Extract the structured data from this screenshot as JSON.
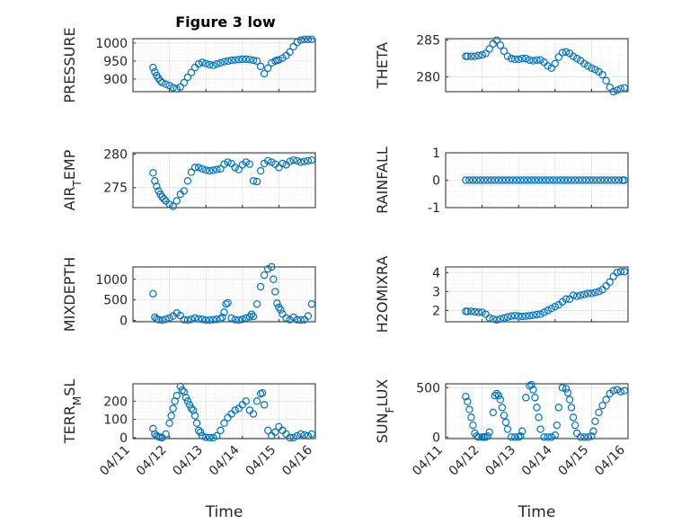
{
  "figure": {
    "title": "Figure 3 low",
    "xlabel": "Time"
  },
  "chart_data": [
    {
      "type": "scatter",
      "ylabel": "PRESSURE",
      "title": "Figure 3 low",
      "xlabel": "",
      "xlim": [
        "04/11",
        "04/16"
      ],
      "ylim": [
        865,
        1012
      ],
      "yticks": [
        "900",
        "950",
        "1000"
      ],
      "xticks": [],
      "x": [
        0.55,
        0.6,
        0.65,
        0.7,
        0.75,
        0.8,
        0.9,
        1.0,
        1.1,
        1.2,
        1.3,
        1.4,
        1.5,
        1.6,
        1.7,
        1.8,
        1.9,
        2.0,
        2.1,
        2.2,
        2.3,
        2.4,
        2.5,
        2.6,
        2.7,
        2.8,
        2.9,
        3.0,
        3.1,
        3.2,
        3.3,
        3.4,
        3.5,
        3.6,
        3.7,
        3.8,
        3.9,
        3.95,
        4.0,
        4.1,
        4.2,
        4.3,
        4.4,
        4.5,
        4.6,
        4.7,
        4.8,
        4.9
      ],
      "y": [
        932,
        920,
        910,
        902,
        895,
        890,
        886,
        882,
        876,
        873,
        878,
        890,
        905,
        918,
        932,
        942,
        946,
        943,
        940,
        938,
        942,
        945,
        948,
        950,
        952,
        953,
        954,
        955,
        955,
        954,
        952,
        950,
        935,
        915,
        930,
        945,
        950,
        952,
        953,
        958,
        965,
        975,
        990,
        1002,
        1008,
        1010,
        1010,
        1010
      ]
    },
    {
      "type": "scatter",
      "ylabel": "THETA",
      "xlim": [
        "04/11",
        "04/16"
      ],
      "ylim": [
        278,
        285.2
      ],
      "yticks": [
        "280",
        "285"
      ],
      "xticks": [],
      "x": [
        0.55,
        0.6,
        0.7,
        0.8,
        0.9,
        1.0,
        1.1,
        1.2,
        1.3,
        1.4,
        1.5,
        1.6,
        1.7,
        1.8,
        1.9,
        2.0,
        2.1,
        2.2,
        2.3,
        2.4,
        2.5,
        2.6,
        2.7,
        2.8,
        2.9,
        3.0,
        3.1,
        3.2,
        3.3,
        3.4,
        3.5,
        3.6,
        3.7,
        3.8,
        3.9,
        4.0,
        4.1,
        4.2,
        4.3,
        4.4,
        4.5,
        4.6,
        4.7,
        4.8,
        4.9
      ],
      "y": [
        282.8,
        282.8,
        282.8,
        282.8,
        282.9,
        283.0,
        283.2,
        283.8,
        284.5,
        285.0,
        284.3,
        283.5,
        282.8,
        282.5,
        282.4,
        282.4,
        282.5,
        282.5,
        282.3,
        282.2,
        282.3,
        282.3,
        282.0,
        281.5,
        281.2,
        281.8,
        282.7,
        283.3,
        283.4,
        283.2,
        282.8,
        282.5,
        282.2,
        281.8,
        281.5,
        281.2,
        281.0,
        280.7,
        280.3,
        279.5,
        278.6,
        278.0,
        278.2,
        278.4,
        278.5
      ]
    },
    {
      "type": "scatter",
      "ylabel": "AIR_TEMP",
      "xlim": [
        "04/11",
        "04/16"
      ],
      "ylim": [
        272,
        280.2
      ],
      "yticks": [
        "275",
        "280"
      ],
      "xticks": [],
      "x": [
        0.55,
        0.6,
        0.65,
        0.7,
        0.75,
        0.8,
        0.85,
        0.9,
        1.0,
        1.1,
        1.2,
        1.3,
        1.4,
        1.5,
        1.6,
        1.7,
        1.8,
        1.9,
        2.0,
        2.1,
        2.2,
        2.3,
        2.4,
        2.5,
        2.6,
        2.7,
        2.8,
        2.9,
        3.0,
        3.1,
        3.2,
        3.3,
        3.4,
        3.5,
        3.6,
        3.7,
        3.8,
        3.9,
        4.0,
        4.1,
        4.2,
        4.3,
        4.4,
        4.5,
        4.6,
        4.7,
        4.8,
        4.9
      ],
      "y": [
        277.2,
        276.0,
        275.2,
        274.5,
        274.0,
        273.6,
        273.3,
        273.0,
        272.5,
        272.2,
        273.0,
        274.0,
        274.5,
        276.0,
        277.3,
        278.0,
        278.0,
        277.8,
        277.6,
        277.5,
        277.6,
        277.7,
        277.8,
        278.5,
        278.8,
        278.6,
        278.0,
        277.7,
        278.4,
        278.8,
        278.5,
        276.0,
        275.9,
        277.5,
        278.6,
        279.0,
        278.8,
        278.5,
        278.0,
        278.6,
        278.4,
        278.9,
        279.1,
        279.0,
        278.8,
        278.9,
        279.0,
        279.1
      ]
    },
    {
      "type": "scatter",
      "ylabel": "RAINFALL",
      "xlim": [
        "04/11",
        "04/16"
      ],
      "ylim": [
        -1,
        1
      ],
      "yticks": [
        "-1",
        "0",
        "1"
      ],
      "xticks": [],
      "x": [
        0.55,
        0.65,
        0.75,
        0.85,
        0.95,
        1.05,
        1.15,
        1.25,
        1.35,
        1.45,
        1.55,
        1.65,
        1.75,
        1.85,
        1.95,
        2.05,
        2.15,
        2.25,
        2.35,
        2.45,
        2.55,
        2.65,
        2.75,
        2.85,
        2.95,
        3.05,
        3.15,
        3.25,
        3.35,
        3.45,
        3.55,
        3.65,
        3.75,
        3.85,
        3.95,
        4.05,
        4.15,
        4.25,
        4.35,
        4.45,
        4.55,
        4.65,
        4.75,
        4.85,
        4.9
      ],
      "y": [
        0,
        0,
        0,
        0,
        0,
        0,
        0,
        0,
        0,
        0,
        0,
        0,
        0,
        0,
        0,
        0,
        0,
        0,
        0,
        0,
        0,
        0,
        0,
        0,
        0,
        0,
        0,
        0,
        0,
        0,
        0,
        0,
        0,
        0,
        0,
        0,
        0,
        0,
        0,
        0,
        0,
        0,
        0,
        0,
        0
      ]
    },
    {
      "type": "scatter",
      "ylabel": "MIXDEPTH",
      "xlim": [
        "04/11",
        "04/16"
      ],
      "ylim": [
        -30,
        1300
      ],
      "yticks": [
        "0",
        "500",
        "1000"
      ],
      "xticks": [],
      "x": [
        0.55,
        0.6,
        0.65,
        0.7,
        0.8,
        0.9,
        1.0,
        1.1,
        1.2,
        1.3,
        1.4,
        1.5,
        1.6,
        1.7,
        1.8,
        1.9,
        2.0,
        2.1,
        2.2,
        2.3,
        2.4,
        2.45,
        2.5,
        2.55,
        2.6,
        2.7,
        2.8,
        2.9,
        3.0,
        3.1,
        3.2,
        3.25,
        3.3,
        3.4,
        3.5,
        3.6,
        3.7,
        3.8,
        3.85,
        3.9,
        3.95,
        4.0,
        4.05,
        4.1,
        4.2,
        4.3,
        4.4,
        4.5,
        4.6,
        4.7,
        4.8,
        4.9
      ],
      "y": [
        650,
        80,
        40,
        20,
        10,
        30,
        60,
        110,
        180,
        120,
        20,
        10,
        30,
        60,
        40,
        30,
        10,
        10,
        20,
        30,
        40,
        80,
        200,
        400,
        430,
        60,
        20,
        10,
        30,
        60,
        90,
        150,
        100,
        400,
        820,
        1100,
        1250,
        1300,
        1000,
        700,
        420,
        320,
        260,
        160,
        60,
        20,
        80,
        20,
        10,
        20,
        110,
        400
      ]
    },
    {
      "type": "scatter",
      "ylabel": "H2OMIXRA",
      "xlim": [
        "04/11",
        "04/16"
      ],
      "ylim": [
        1.4,
        4.3
      ],
      "yticks": [
        "2",
        "3",
        "4"
      ],
      "xticks": [],
      "x": [
        0.55,
        0.6,
        0.7,
        0.8,
        0.9,
        1.0,
        1.1,
        1.2,
        1.3,
        1.4,
        1.5,
        1.6,
        1.7,
        1.8,
        1.9,
        2.0,
        2.1,
        2.2,
        2.3,
        2.4,
        2.5,
        2.6,
        2.7,
        2.8,
        2.9,
        3.0,
        3.1,
        3.2,
        3.3,
        3.4,
        3.5,
        3.6,
        3.7,
        3.8,
        3.9,
        4.0,
        4.1,
        4.2,
        4.3,
        4.4,
        4.5,
        4.6,
        4.7,
        4.8,
        4.9
      ],
      "y": [
        1.95,
        1.95,
        1.95,
        1.93,
        1.9,
        1.9,
        1.8,
        1.6,
        1.55,
        1.5,
        1.55,
        1.6,
        1.65,
        1.7,
        1.72,
        1.7,
        1.68,
        1.7,
        1.72,
        1.75,
        1.78,
        1.8,
        1.9,
        2.0,
        2.1,
        2.2,
        2.3,
        2.45,
        2.6,
        2.6,
        2.8,
        2.75,
        2.8,
        2.85,
        2.9,
        2.9,
        2.95,
        3.0,
        3.1,
        3.3,
        3.5,
        3.8,
        4.0,
        4.05,
        4.05
      ]
    },
    {
      "type": "scatter",
      "ylabel": "TERR_MSL",
      "xlim": [
        "04/11",
        "04/16"
      ],
      "ylim": [
        -5,
        295
      ],
      "yticks": [
        "0",
        "100",
        "200"
      ],
      "xticks": [
        "04/11",
        "04/12",
        "04/13",
        "04/14",
        "04/15",
        "04/16"
      ],
      "xlabel": "Time",
      "x": [
        0.55,
        0.6,
        0.65,
        0.7,
        0.75,
        0.8,
        0.9,
        1.0,
        1.05,
        1.1,
        1.15,
        1.2,
        1.3,
        1.35,
        1.4,
        1.45,
        1.5,
        1.55,
        1.6,
        1.65,
        1.7,
        1.75,
        1.8,
        1.85,
        1.9,
        2.0,
        2.1,
        2.2,
        2.3,
        2.4,
        2.5,
        2.6,
        2.7,
        2.8,
        2.9,
        3.0,
        3.1,
        3.2,
        3.3,
        3.4,
        3.5,
        3.55,
        3.6,
        3.7,
        3.8,
        3.9,
        4.0,
        4.1,
        4.2,
        4.3,
        4.4,
        4.5,
        4.6,
        4.7,
        4.8,
        4.9
      ],
      "y": [
        50,
        20,
        10,
        5,
        2,
        0,
        20,
        80,
        120,
        160,
        200,
        230,
        280,
        260,
        250,
        220,
        200,
        180,
        160,
        150,
        120,
        80,
        40,
        30,
        10,
        2,
        0,
        0,
        10,
        40,
        80,
        110,
        130,
        150,
        160,
        180,
        200,
        150,
        130,
        200,
        240,
        245,
        180,
        40,
        10,
        30,
        60,
        40,
        20,
        0,
        0,
        10,
        20,
        15,
        10,
        20
      ]
    },
    {
      "type": "scatter",
      "ylabel": "SUN_FLUX",
      "xlim": [
        "04/11",
        "04/16"
      ],
      "ylim": [
        -15,
        540
      ],
      "yticks": [
        "0",
        "500"
      ],
      "xticks": [
        "04/11",
        "04/12",
        "04/13",
        "04/14",
        "04/15",
        "04/16"
      ],
      "xlabel": "Time",
      "x": [
        0.55,
        0.6,
        0.65,
        0.7,
        0.75,
        0.8,
        0.85,
        0.9,
        1.0,
        1.05,
        1.1,
        1.15,
        1.2,
        1.3,
        1.35,
        1.4,
        1.45,
        1.5,
        1.55,
        1.6,
        1.65,
        1.7,
        1.8,
        1.9,
        2.0,
        2.05,
        2.1,
        2.2,
        2.3,
        2.35,
        2.4,
        2.45,
        2.5,
        2.55,
        2.6,
        2.7,
        2.8,
        2.9,
        3.0,
        3.05,
        3.1,
        3.2,
        3.3,
        3.35,
        3.4,
        3.45,
        3.5,
        3.55,
        3.6,
        3.7,
        3.8,
        3.9,
        4.0,
        4.05,
        4.1,
        4.2,
        4.3,
        4.4,
        4.5,
        4.6,
        4.7,
        4.8,
        4.9
      ],
      "y": [
        410,
        360,
        280,
        200,
        120,
        40,
        10,
        0,
        0,
        0,
        0,
        10,
        50,
        250,
        420,
        440,
        420,
        380,
        300,
        220,
        150,
        80,
        0,
        0,
        0,
        10,
        60,
        400,
        520,
        530,
        480,
        400,
        300,
        200,
        80,
        0,
        0,
        0,
        20,
        120,
        300,
        500,
        490,
        450,
        380,
        300,
        200,
        120,
        40,
        0,
        0,
        0,
        10,
        60,
        160,
        250,
        320,
        380,
        440,
        470,
        480,
        460,
        470
      ]
    }
  ]
}
